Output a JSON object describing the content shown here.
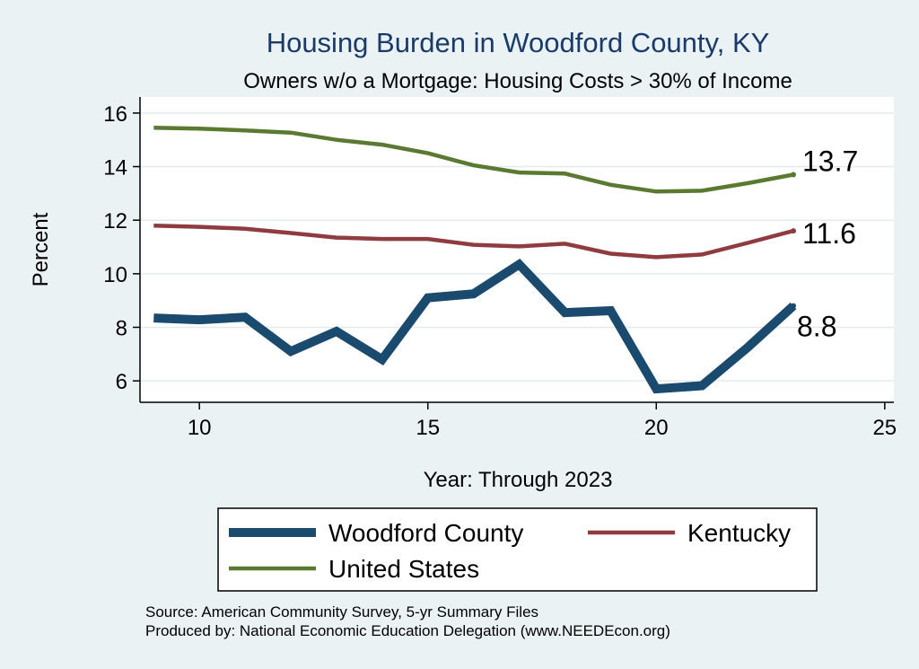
{
  "colors": {
    "background": "#eaf2f3",
    "plot_background": "#ffffff",
    "title": "#1a3a6b",
    "woodford": "#1b4a6f",
    "kentucky": "#8f3b3f",
    "united_states": "#5a7a32"
  },
  "chart_data": {
    "type": "line",
    "title": "Housing Burden in Woodford County, KY",
    "subtitle": "Owners w/o a Mortgage: Housing Costs > 30% of Income",
    "xlabel": "Year: Through 2023",
    "ylabel": "Percent",
    "xlim": [
      8.7,
      25.2
    ],
    "ylim": [
      5.2,
      16.6
    ],
    "x_ticks": [
      10,
      15,
      20,
      25
    ],
    "y_ticks": [
      6,
      8,
      10,
      12,
      14,
      16
    ],
    "grid": true,
    "legend_position": "bottom",
    "x": [
      9,
      10,
      11,
      12,
      13,
      14,
      15,
      16,
      17,
      18,
      19,
      20,
      21,
      22,
      23
    ],
    "series": [
      {
        "name": "Woodford County",
        "values": [
          8.35,
          8.28,
          8.38,
          7.1,
          7.85,
          6.8,
          9.1,
          9.25,
          10.35,
          8.55,
          8.62,
          5.7,
          5.82,
          7.25,
          8.8
        ],
        "end_label": "8.8"
      },
      {
        "name": "Kentucky",
        "values": [
          11.8,
          11.75,
          11.68,
          11.52,
          11.35,
          11.3,
          11.3,
          11.08,
          11.02,
          11.12,
          10.75,
          10.62,
          10.72,
          11.15,
          11.6
        ],
        "end_label": "11.6"
      },
      {
        "name": "United States",
        "values": [
          15.45,
          15.42,
          15.35,
          15.27,
          15.0,
          14.82,
          14.5,
          14.05,
          13.78,
          13.74,
          13.32,
          13.07,
          13.1,
          13.38,
          13.7
        ],
        "end_label": "13.7"
      }
    ]
  },
  "notes": {
    "source": "Source: American Community Survey, 5-yr Summary Files",
    "produced_by": "Produced by: National Economic Education Delegation (www.NEEDEcon.org)"
  }
}
